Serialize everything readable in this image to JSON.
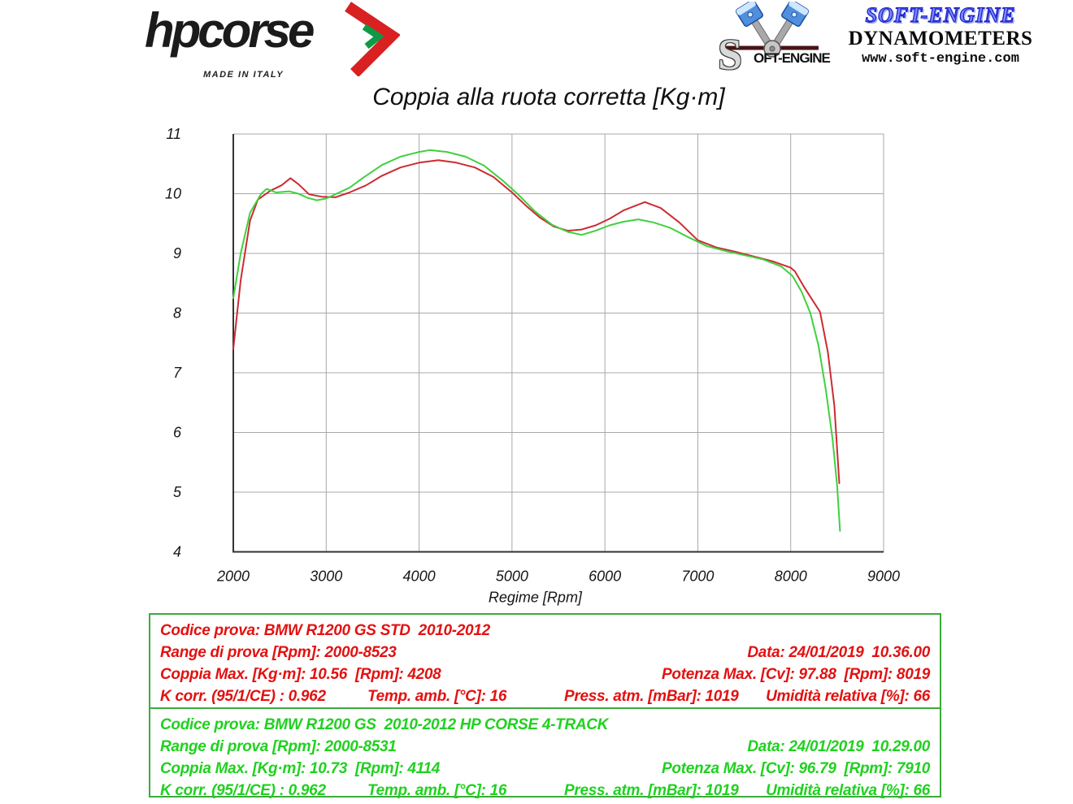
{
  "header": {
    "hpcorse": {
      "brand": "hpcorse",
      "tagline": "MADE IN ITALY"
    },
    "softengine": {
      "logo_s": "S",
      "logo_text": "OFT-ENGINE",
      "brand": "SOFT-ENGINE",
      "subtitle": "DYNAMOMETERS",
      "url": "www.soft-engine.com"
    }
  },
  "chart_data": {
    "type": "line",
    "title": "Coppia alla ruota corretta [Kg·m]",
    "xlabel": "Regime [Rpm]",
    "ylabel": "",
    "xlim": [
      2000,
      9000
    ],
    "ylim": [
      4,
      11
    ],
    "x_ticks": [
      2000,
      3000,
      4000,
      5000,
      6000,
      7000,
      8000,
      9000
    ],
    "y_ticks": [
      4,
      5,
      6,
      7,
      8,
      9,
      10,
      11
    ],
    "grid": true,
    "grid_color": "#a8a8a8",
    "axis_color": "#333333",
    "legend_position": "none",
    "series": [
      {
        "name": "BMW R1200 GS STD 2010-2012",
        "color": "#cc2b33",
        "points": [
          [
            2000,
            7.4
          ],
          [
            2080,
            8.55
          ],
          [
            2180,
            9.55
          ],
          [
            2264,
            9.9
          ],
          [
            2400,
            10.05
          ],
          [
            2520,
            10.14
          ],
          [
            2615,
            10.26
          ],
          [
            2700,
            10.16
          ],
          [
            2815,
            9.99
          ],
          [
            2950,
            9.95
          ],
          [
            3100,
            9.94
          ],
          [
            3250,
            10.02
          ],
          [
            3430,
            10.14
          ],
          [
            3600,
            10.3
          ],
          [
            3800,
            10.44
          ],
          [
            4000,
            10.52
          ],
          [
            4208,
            10.56
          ],
          [
            4400,
            10.52
          ],
          [
            4600,
            10.44
          ],
          [
            4800,
            10.28
          ],
          [
            5000,
            10.02
          ],
          [
            5150,
            9.8
          ],
          [
            5300,
            9.6
          ],
          [
            5450,
            9.45
          ],
          [
            5600,
            9.38
          ],
          [
            5750,
            9.4
          ],
          [
            5900,
            9.47
          ],
          [
            6050,
            9.58
          ],
          [
            6200,
            9.72
          ],
          [
            6430,
            9.86
          ],
          [
            6600,
            9.76
          ],
          [
            6800,
            9.52
          ],
          [
            7000,
            9.22
          ],
          [
            7200,
            9.1
          ],
          [
            7400,
            9.03
          ],
          [
            7600,
            8.95
          ],
          [
            7800,
            8.87
          ],
          [
            8000,
            8.76
          ],
          [
            8045,
            8.7
          ],
          [
            8150,
            8.42
          ],
          [
            8316,
            8.02
          ],
          [
            8400,
            7.35
          ],
          [
            8470,
            6.45
          ],
          [
            8523,
            5.15
          ]
        ]
      },
      {
        "name": "BMW R1200 GS 2010-2012 HP CORSE 4-TRACK",
        "color": "#3fd13f",
        "points": [
          [
            2000,
            8.25
          ],
          [
            2080,
            9.0
          ],
          [
            2180,
            9.68
          ],
          [
            2300,
            10.0
          ],
          [
            2360,
            10.08
          ],
          [
            2460,
            10.02
          ],
          [
            2600,
            10.04
          ],
          [
            2700,
            10.0
          ],
          [
            2800,
            9.93
          ],
          [
            2900,
            9.89
          ],
          [
            3000,
            9.92
          ],
          [
            3100,
            9.99
          ],
          [
            3250,
            10.1
          ],
          [
            3400,
            10.27
          ],
          [
            3600,
            10.48
          ],
          [
            3800,
            10.62
          ],
          [
            4000,
            10.7
          ],
          [
            4114,
            10.73
          ],
          [
            4300,
            10.7
          ],
          [
            4500,
            10.62
          ],
          [
            4700,
            10.47
          ],
          [
            4900,
            10.22
          ],
          [
            5070,
            9.98
          ],
          [
            5250,
            9.7
          ],
          [
            5430,
            9.48
          ],
          [
            5600,
            9.36
          ],
          [
            5750,
            9.31
          ],
          [
            5900,
            9.38
          ],
          [
            6050,
            9.47
          ],
          [
            6200,
            9.53
          ],
          [
            6360,
            9.57
          ],
          [
            6520,
            9.52
          ],
          [
            6700,
            9.43
          ],
          [
            6900,
            9.27
          ],
          [
            7100,
            9.12
          ],
          [
            7300,
            9.04
          ],
          [
            7500,
            8.97
          ],
          [
            7700,
            8.9
          ],
          [
            7900,
            8.78
          ],
          [
            8020,
            8.62
          ],
          [
            8120,
            8.35
          ],
          [
            8212,
            8.0
          ],
          [
            8300,
            7.45
          ],
          [
            8380,
            6.7
          ],
          [
            8450,
            5.9
          ],
          [
            8500,
            5.1
          ],
          [
            8531,
            4.35
          ]
        ]
      }
    ]
  },
  "results": {
    "std": {
      "codice": "Codice prova: BMW R1200 GS STD  2010-2012",
      "range": "Range di prova [Rpm]: 2000-8523",
      "data": "Data: 24/01/2019  10.36.00",
      "coppia": "Coppia Max. [Kg·m]: 10.56  [Rpm]: 4208",
      "potenza": "Potenza Max. [Cv]: 97.88  [Rpm]: 8019",
      "kcorr": "K corr. (95/1/CE) : 0.962",
      "temp": "Temp. amb. [°C]: 16",
      "press": "Press. atm. [mBar]: 1019",
      "umidita": "Umidità relativa [%]: 66"
    },
    "hpcorse": {
      "codice": "Codice prova: BMW R1200 GS  2010-2012 HP CORSE 4-TRACK",
      "range": "Range di prova [Rpm]: 2000-8531",
      "data": "Data: 24/01/2019  10.29.00",
      "coppia": "Coppia Max. [Kg·m]: 10.73  [Rpm]: 4114",
      "potenza": "Potenza Max. [Cv]: 96.79  [Rpm]: 7910",
      "kcorr": "K corr. (95/1/CE) : 0.962",
      "temp": "Temp. amb. [°C]: 16",
      "press": "Press. atm. [mBar]: 1019",
      "umidita": "Umidità relativa [%]: 66"
    }
  }
}
